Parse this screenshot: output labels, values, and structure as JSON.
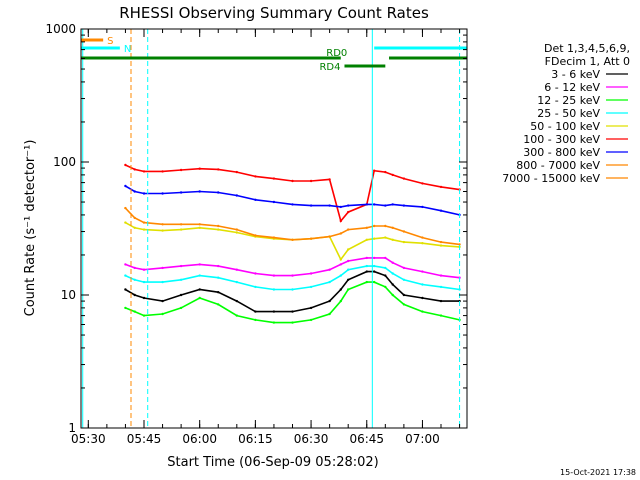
{
  "chart_data": {
    "type": "line",
    "title": "RHESSI Observing Summary Count Rates",
    "xlabel": "Start Time (06-Sep-09 05:28:02)",
    "ylabel": "Count Rate (s⁻¹ detector⁻¹)",
    "yscale": "log",
    "ylim": [
      1,
      1000
    ],
    "xlim": [
      "05:28:02",
      "07:12:00"
    ],
    "x_ticks": [
      "05:30",
      "05:45",
      "06:00",
      "06:15",
      "06:30",
      "06:45",
      "07:00"
    ],
    "y_ticks": [
      "1",
      "10",
      "100",
      "1000"
    ],
    "legend_header": [
      "Det 1,3,4,5,6,9,",
      "FDecim 1, Att 0"
    ],
    "legend_position": "right",
    "timestamp": "15-Oct-2021 17:38",
    "x": [
      "05:40:00",
      "05:42:30",
      "05:45:00",
      "05:50:00",
      "05:55:00",
      "06:00:00",
      "06:05:00",
      "06:10:00",
      "06:15:00",
      "06:20:00",
      "06:25:00",
      "06:30:00",
      "06:35:00",
      "06:38:00",
      "06:40:00",
      "06:45:00",
      "06:47:00",
      "06:50:00",
      "06:52:00",
      "06:55:00",
      "07:00:00",
      "07:05:00",
      "07:10:00"
    ],
    "series": [
      {
        "name": "3 - 6 keV",
        "color": "#000000",
        "values": [
          11,
          10,
          9.5,
          9,
          10,
          11,
          10.5,
          9,
          7.5,
          7.5,
          7.5,
          8,
          9,
          11,
          13,
          15,
          15,
          14,
          12,
          10,
          9.5,
          9,
          9
        ]
      },
      {
        "name": "6 - 12 keV",
        "color": "#ff00ff",
        "values": [
          17,
          16,
          15.5,
          16,
          16.5,
          17,
          16.5,
          15.5,
          14.5,
          14,
          14,
          14.5,
          15.5,
          17,
          18,
          19,
          19,
          19,
          17.5,
          16,
          15,
          14,
          13.5
        ]
      },
      {
        "name": "12 - 25 keV",
        "color": "#00ff00",
        "values": [
          8,
          7.5,
          7,
          7.2,
          8,
          9.5,
          8.5,
          7,
          6.5,
          6.2,
          6.2,
          6.5,
          7.2,
          9,
          11,
          12.5,
          12.5,
          11.5,
          10,
          8.5,
          7.5,
          7,
          6.5
        ]
      },
      {
        "name": "25 - 50 keV",
        "color": "#00ffff",
        "values": [
          14,
          13,
          12.5,
          12.5,
          13,
          14,
          13.5,
          12.5,
          11.5,
          11,
          11,
          11.5,
          12.5,
          14,
          15.5,
          16.5,
          16.5,
          16,
          14.5,
          13,
          12,
          11.5,
          11
        ]
      },
      {
        "name": "50 - 100 keV",
        "color": "#e0e000",
        "values": [
          35,
          32,
          31,
          30.5,
          31,
          32,
          31,
          29.5,
          27.5,
          26.5,
          26,
          26.5,
          27.5,
          18.5,
          22,
          26,
          26.5,
          27,
          26,
          25,
          24.5,
          23.5,
          23
        ]
      },
      {
        "name": "100 - 300 keV",
        "color": "#ff0000",
        "values": [
          95,
          88,
          85,
          85,
          87,
          89,
          88,
          84,
          78,
          75,
          72,
          72,
          74,
          36,
          42,
          48,
          86,
          84,
          80,
          75,
          69,
          65,
          62
        ]
      },
      {
        "name": "300 - 800 keV",
        "color": "#0000ff",
        "values": [
          66,
          60,
          58,
          58,
          59,
          60,
          59,
          56,
          52,
          50,
          48,
          47,
          47,
          46,
          47,
          48,
          48,
          47,
          48,
          47,
          46,
          43,
          40
        ]
      },
      {
        "name": "800 - 7000 keV",
        "color": "#ff8800",
        "values": [
          45,
          38,
          35,
          34,
          34,
          34,
          33,
          31,
          28,
          27,
          26,
          26.5,
          27.5,
          29,
          31,
          32,
          33,
          33,
          32,
          30,
          27,
          25,
          24
        ]
      }
    ],
    "extra_legend": [
      {
        "name": "7000 - 15000 keV",
        "color": "#ff8800"
      }
    ],
    "state_bars": [
      {
        "label": "S",
        "color": "#ff8800",
        "start": "05:28:02",
        "end": "05:34:00"
      },
      {
        "label": "N",
        "color": "#00ffff",
        "start": "05:28:02",
        "end": "05:38:30"
      },
      {
        "label": "N",
        "color": "#00ffff",
        "start": "06:47:00",
        "end": "07:12:00"
      },
      {
        "label": "RD0",
        "color": "#008000",
        "start": "05:28:02",
        "end": "06:38:00"
      },
      {
        "label": "RD0",
        "color": "#008000",
        "start": "06:51:00",
        "end": "07:12:00"
      },
      {
        "label": "RD4",
        "color": "#008000",
        "start": "06:39:00",
        "end": "06:50:00"
      }
    ],
    "vlines": [
      {
        "time": "05:28:30",
        "color": "#00ffff",
        "style": "solid"
      },
      {
        "time": "05:41:30",
        "color": "#ff8800",
        "style": "dashed"
      },
      {
        "time": "05:46:00",
        "color": "#00ffff",
        "style": "dashed"
      },
      {
        "time": "06:46:30",
        "color": "#00ffff",
        "style": "solid"
      },
      {
        "time": "07:10:00",
        "color": "#00ffff",
        "style": "dashed"
      }
    ],
    "grid": false
  }
}
